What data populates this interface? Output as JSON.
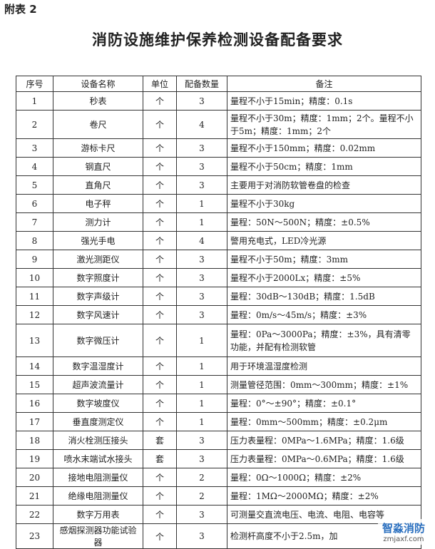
{
  "header": {
    "label": "附表 2",
    "title": "消防设施维护保养检测设备配备要求"
  },
  "table": {
    "columns": [
      "序号",
      "设备名称",
      "单位",
      "配备数量",
      "备注"
    ],
    "rows": [
      [
        "1",
        "秒表",
        "个",
        "3",
        "量程不小于15min；精度：0.1s"
      ],
      [
        "2",
        "卷尺",
        "个",
        "4",
        "量程不小于30m；精度：1mm；2个。量程不小于5m；精度：1mm；2个"
      ],
      [
        "3",
        "游标卡尺",
        "个",
        "3",
        "量程不小于150mm；精度：0.02mm"
      ],
      [
        "4",
        "钢直尺",
        "个",
        "3",
        "量程不小于50cm；精度：1mm"
      ],
      [
        "5",
        "直角尺",
        "个",
        "3",
        "主要用于对消防软管卷盘的检查"
      ],
      [
        "6",
        "电子秤",
        "个",
        "1",
        "量程不小于30kg"
      ],
      [
        "7",
        "测力计",
        "个",
        "1",
        "量程：50N～500N；精度：±0.5%"
      ],
      [
        "8",
        "强光手电",
        "个",
        "4",
        "警用充电式，LED冷光源"
      ],
      [
        "9",
        "激光测距仪",
        "个",
        "3",
        "量程不小于50m；精度：3mm"
      ],
      [
        "10",
        "数字照度计",
        "个",
        "3",
        "量程不小于2000Lx；精度：±5%"
      ],
      [
        "11",
        "数字声级计",
        "个",
        "3",
        "量程：30dB～130dB；精度：1.5dB"
      ],
      [
        "12",
        "数字风速计",
        "个",
        "3",
        "量程：0m/s～45m/s；精度：±3%"
      ],
      [
        "13",
        "数字微压计",
        "个",
        "1",
        "量程：0Pa～3000Pa；精度：±3%，具有清零功能，并配有检测软管"
      ],
      [
        "14",
        "数字温湿度计",
        "个",
        "1",
        "用于环境温湿度检测"
      ],
      [
        "15",
        "超声波流量计",
        "个",
        "1",
        "测量管径范围：0mm～300mm；精度：±1%"
      ],
      [
        "16",
        "数字坡度仪",
        "个",
        "1",
        "量程：0°～±90°；精度：±0.1°"
      ],
      [
        "17",
        "垂直度测定仪",
        "个",
        "1",
        "量程：0mm～500mm；精度：±0.2μm"
      ],
      [
        "18",
        "消火栓测压接头",
        "套",
        "3",
        "压力表量程：0MPa～1.6MPa；精度：1.6级"
      ],
      [
        "19",
        "喷水末端试水接头",
        "套",
        "3",
        "压力表量程：0MPa～0.6MPa；精度：1.6级"
      ],
      [
        "20",
        "接地电阻测量仪",
        "个",
        "2",
        "量程：0Ω～1000Ω；精度：±2%"
      ],
      [
        "21",
        "绝缘电阻测量仪",
        "个",
        "2",
        "量程：1MΩ～2000MΩ；精度：±2%"
      ],
      [
        "22",
        "数字万用表",
        "个",
        "3",
        "可测量交直流电压、电流、电阻、电容等"
      ],
      [
        "23",
        "感烟探测器功能试验器",
        "个",
        "3",
        "检测杆高度不小于2.5m，加"
      ]
    ]
  },
  "watermark": {
    "name": "智淼消防",
    "site": "zmjaxf.com"
  }
}
